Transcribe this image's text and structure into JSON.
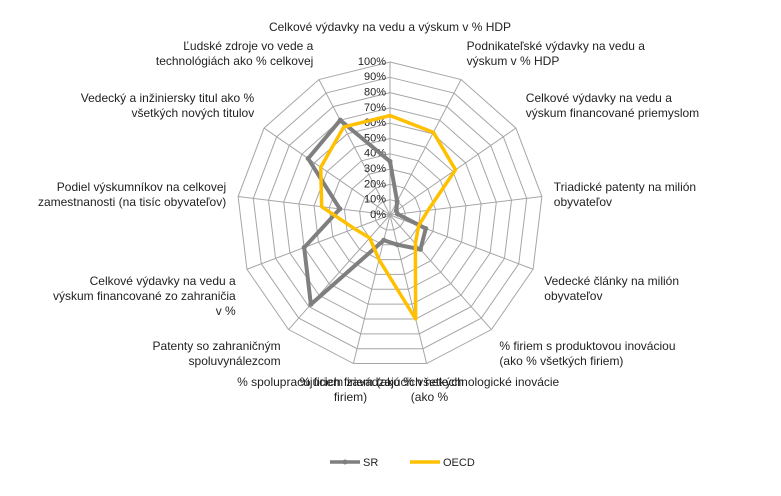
{
  "chart_data": {
    "type": "radar",
    "categories": [
      "Celkové výdavky na vedu a výskum v % HDP",
      "Podnikateľské výdavky na vedu a výskum v % HDP",
      "Celkové výdavky na vedu a výskum financované priemyslom",
      "Triadické patenty na milión obyvateľov",
      "Vedecké články na milión obyvateľov",
      "% firiem s produktovou inováciou (ako % všetkých firiem)",
      "% firiem zavádzajúcich netechnologické inovácie (ako %",
      "% spolupracujúcich firiem (ako % všetkých firiem)",
      "Patenty so zahraničným spoluvynálezcom",
      "Celkové výdavky na vedu a výskum financované zo zahraničia v %",
      "Podiel výskumníkov na celkovej zamestnanosti (na tisíc obyvateľov)",
      "Vedecký a inžiniersky titul ako % všetkých nových titulov",
      "Ľudské zdroje vo vede a technológiách ako % celkovej"
    ],
    "series": [
      {
        "name": "SR",
        "color": "#7f7f7f",
        "values": [
          35,
          10,
          5,
          5,
          25,
          30,
          20,
          17,
          78,
          60,
          33,
          65,
          70
        ]
      },
      {
        "name": "OECD",
        "color": "#ffc000",
        "values": [
          65,
          61,
          52,
          25,
          20,
          25,
          70,
          30,
          20,
          25,
          45,
          55,
          65
        ]
      }
    ],
    "ylim": [
      0,
      100
    ],
    "yticks": [
      {
        "value": 0,
        "label": "0%"
      },
      {
        "value": 10,
        "label": "10%"
      },
      {
        "value": 20,
        "label": "20%"
      },
      {
        "value": 30,
        "label": "30%"
      },
      {
        "value": 40,
        "label": "40%"
      },
      {
        "value": 50,
        "label": "50%"
      },
      {
        "value": 60,
        "label": "60%"
      },
      {
        "value": 70,
        "label": "70%"
      },
      {
        "value": 80,
        "label": "80%"
      },
      {
        "value": 90,
        "label": "90%"
      },
      {
        "value": 100,
        "label": "100%"
      }
    ],
    "grid": true,
    "legend": "bottom"
  }
}
